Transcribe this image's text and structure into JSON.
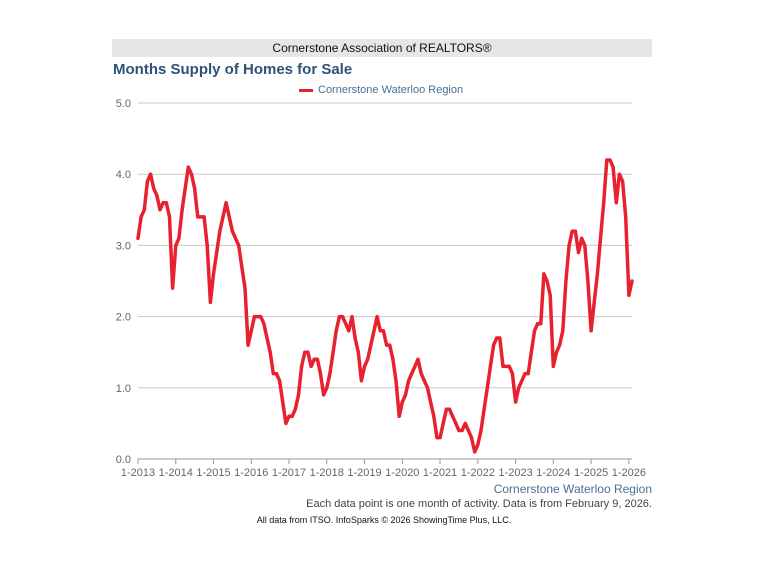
{
  "header": {
    "org_label": "Cornerstone Association of REALTORS®"
  },
  "chart_data": {
    "type": "line",
    "title": "Months Supply of Homes for Sale",
    "xlabel": "",
    "ylabel": "",
    "ylim": [
      0,
      5
    ],
    "y_ticks": [
      "0.0",
      "1.0",
      "2.0",
      "3.0",
      "4.0",
      "5.0"
    ],
    "x_ticks": [
      "1-2013",
      "1-2014",
      "1-2015",
      "1-2016",
      "1-2017",
      "1-2018",
      "1-2019",
      "1-2020",
      "1-2021",
      "1-2022",
      "1-2023",
      "1-2024",
      "1-2025",
      "1-2026"
    ],
    "x_start": "1-2013",
    "grid": true,
    "legend_position": "top-center",
    "series": [
      {
        "name": "Cornerstone Waterloo Region",
        "color": "#e8212e",
        "values": [
          3.1,
          3.4,
          3.5,
          3.9,
          4.0,
          3.8,
          3.7,
          3.5,
          3.6,
          3.6,
          3.4,
          2.4,
          3.0,
          3.1,
          3.5,
          3.8,
          4.1,
          4.0,
          3.8,
          3.4,
          3.4,
          3.4,
          3.0,
          2.2,
          2.6,
          2.9,
          3.2,
          3.4,
          3.6,
          3.4,
          3.2,
          3.1,
          3.0,
          2.7,
          2.4,
          1.6,
          1.8,
          2.0,
          2.0,
          2.0,
          1.9,
          1.7,
          1.5,
          1.2,
          1.2,
          1.1,
          0.8,
          0.5,
          0.6,
          0.6,
          0.7,
          0.9,
          1.3,
          1.5,
          1.5,
          1.3,
          1.4,
          1.4,
          1.2,
          0.9,
          1.0,
          1.2,
          1.5,
          1.8,
          2.0,
          2.0,
          1.9,
          1.8,
          2.0,
          1.7,
          1.5,
          1.1,
          1.3,
          1.4,
          1.6,
          1.8,
          2.0,
          1.8,
          1.8,
          1.6,
          1.6,
          1.4,
          1.1,
          0.6,
          0.8,
          0.9,
          1.1,
          1.2,
          1.3,
          1.4,
          1.2,
          1.1,
          1.0,
          0.8,
          0.6,
          0.3,
          0.3,
          0.5,
          0.7,
          0.7,
          0.6,
          0.5,
          0.4,
          0.4,
          0.5,
          0.4,
          0.3,
          0.1,
          0.2,
          0.4,
          0.7,
          1.0,
          1.3,
          1.6,
          1.7,
          1.7,
          1.3,
          1.3,
          1.3,
          1.2,
          0.8,
          1.0,
          1.1,
          1.2,
          1.2,
          1.5,
          1.8,
          1.9,
          1.9,
          2.6,
          2.5,
          2.3,
          1.3,
          1.5,
          1.6,
          1.8,
          2.5,
          3.0,
          3.2,
          3.2,
          2.9,
          3.1,
          3.0,
          2.5,
          1.8,
          2.2,
          2.6,
          3.1,
          3.6,
          4.2,
          4.2,
          4.1,
          3.6,
          4.0,
          3.9,
          3.4,
          2.3,
          2.5
        ]
      }
    ]
  },
  "footer": {
    "source_label": "Cornerstone Waterloo Region",
    "note": "Each data point is one month of activity. Data is from February 9, 2026.",
    "credit": "All data from ITSO. InfoSparks © 2026 ShowingTime Plus, LLC."
  }
}
